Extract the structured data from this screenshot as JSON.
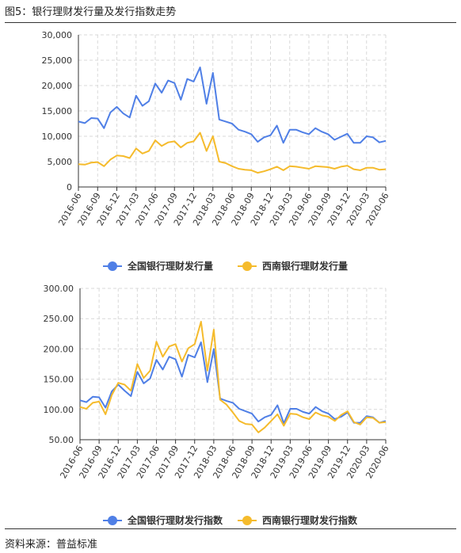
{
  "figure": {
    "title": "图5：银行理财发行量及发行指数走势",
    "source": "资料来源：普益标准"
  },
  "colors": {
    "national": "#4f7fe6",
    "southwest": "#f5bb2c"
  },
  "chart_data": [
    {
      "type": "line",
      "title": "",
      "xlabel": "",
      "ylabel": "",
      "ylim": [
        0,
        30000
      ],
      "yticks": [
        "0",
        "5,000",
        "10,000",
        "15,000",
        "20,000",
        "25,000",
        "30,000"
      ],
      "grid": true,
      "legend": "bottom",
      "x_tick_labels": [
        "2016-06",
        "2016-09",
        "2016-12",
        "2017-03",
        "2017-06",
        "2017-09",
        "2017-12",
        "2018-03",
        "2018-06",
        "2018-09",
        "2018-12",
        "2019-03",
        "2019-06",
        "2019-09",
        "2019-12",
        "2020-03",
        "2020-06"
      ],
      "x": [
        "2016-06",
        "2016-07",
        "2016-08",
        "2016-09",
        "2016-10",
        "2016-11",
        "2016-12",
        "2017-01",
        "2017-02",
        "2017-03",
        "2017-04",
        "2017-05",
        "2017-06",
        "2017-07",
        "2017-08",
        "2017-09",
        "2017-10",
        "2017-11",
        "2017-12",
        "2018-01",
        "2018-02",
        "2018-03",
        "2018-04",
        "2018-05",
        "2018-06",
        "2018-07",
        "2018-08",
        "2018-09",
        "2018-10",
        "2018-11",
        "2018-12",
        "2019-01",
        "2019-02",
        "2019-03",
        "2019-04",
        "2019-05",
        "2019-06",
        "2019-07",
        "2019-08",
        "2019-09",
        "2019-10",
        "2019-11",
        "2019-12",
        "2020-01",
        "2020-02",
        "2020-03",
        "2020-04",
        "2020-05",
        "2020-06"
      ],
      "series": [
        {
          "name": "全国银行理财发行量",
          "color_key": "national",
          "values": [
            12900,
            12600,
            13600,
            13500,
            11600,
            14700,
            15800,
            14500,
            13700,
            18000,
            16000,
            16900,
            20400,
            18600,
            21000,
            20500,
            17200,
            21300,
            20800,
            23600,
            16400,
            22500,
            13300,
            12900,
            12500,
            11300,
            10900,
            10400,
            8900,
            9800,
            10200,
            12100,
            8700,
            11300,
            11300,
            10800,
            10400,
            11600,
            10900,
            10400,
            9300,
            9900,
            10500,
            8700,
            8700,
            10000,
            9800,
            8800,
            9100
          ]
        },
        {
          "name": "西南银行理财发行量",
          "color_key": "southwest",
          "values": [
            4500,
            4400,
            4800,
            4900,
            4100,
            5400,
            6200,
            6100,
            5700,
            7600,
            6600,
            7100,
            9200,
            8100,
            8800,
            9000,
            7800,
            8700,
            9000,
            10700,
            7100,
            10000,
            5000,
            4700,
            4100,
            3600,
            3400,
            3300,
            2800,
            3100,
            3500,
            4000,
            3300,
            4100,
            4000,
            3800,
            3600,
            4100,
            4000,
            3900,
            3600,
            4000,
            4200,
            3500,
            3300,
            3800,
            3800,
            3400,
            3500
          ]
        }
      ]
    },
    {
      "type": "line",
      "title": "",
      "xlabel": "",
      "ylabel": "",
      "ylim": [
        50,
        300
      ],
      "yticks": [
        "50.00",
        "100.00",
        "150.00",
        "200.00",
        "250.00",
        "300.00"
      ],
      "grid": true,
      "legend": "bottom",
      "x_tick_labels": [
        "2016-06",
        "2016-09",
        "2016-12",
        "2017-03",
        "2017-06",
        "2017-09",
        "2017-12",
        "2018-03",
        "2018-06",
        "2018-09",
        "2018-12",
        "2019-03",
        "2019-06",
        "2019-09",
        "2019-12",
        "2020-03",
        "2020-06"
      ],
      "x": [
        "2016-06",
        "2016-07",
        "2016-08",
        "2016-09",
        "2016-10",
        "2016-11",
        "2016-12",
        "2017-01",
        "2017-02",
        "2017-03",
        "2017-04",
        "2017-05",
        "2017-06",
        "2017-07",
        "2017-08",
        "2017-09",
        "2017-10",
        "2017-11",
        "2017-12",
        "2018-01",
        "2018-02",
        "2018-03",
        "2018-04",
        "2018-05",
        "2018-06",
        "2018-07",
        "2018-08",
        "2018-09",
        "2018-10",
        "2018-11",
        "2018-12",
        "2019-01",
        "2019-02",
        "2019-03",
        "2019-04",
        "2019-05",
        "2019-06",
        "2019-07",
        "2019-08",
        "2019-09",
        "2019-10",
        "2019-11",
        "2019-12",
        "2020-01",
        "2020-02",
        "2020-03",
        "2020-04",
        "2020-05",
        "2020-06"
      ],
      "series": [
        {
          "name": "全国银行理财发行指数",
          "color_key": "national",
          "values": [
            115,
            112,
            121,
            120,
            103,
            130,
            141,
            131,
            122,
            162,
            143,
            151,
            182,
            166,
            187,
            183,
            154,
            190,
            186,
            211,
            145,
            200,
            118,
            114,
            111,
            101,
            97,
            93,
            80,
            87,
            91,
            107,
            77,
            101,
            101,
            96,
            93,
            104,
            97,
            93,
            84,
            88,
            95,
            78,
            78,
            89,
            87,
            78,
            81
          ]
        },
        {
          "name": "西南银行理财发行指数",
          "color_key": "southwest",
          "values": [
            104,
            101,
            111,
            113,
            92,
            124,
            144,
            141,
            131,
            175,
            152,
            164,
            212,
            187,
            204,
            208,
            179,
            201,
            208,
            245,
            164,
            232,
            116,
            108,
            95,
            81,
            76,
            75,
            62,
            70,
            81,
            92,
            73,
            93,
            92,
            87,
            84,
            95,
            90,
            88,
            81,
            91,
            97,
            79,
            75,
            87,
            86,
            78,
            79
          ]
        }
      ]
    }
  ]
}
